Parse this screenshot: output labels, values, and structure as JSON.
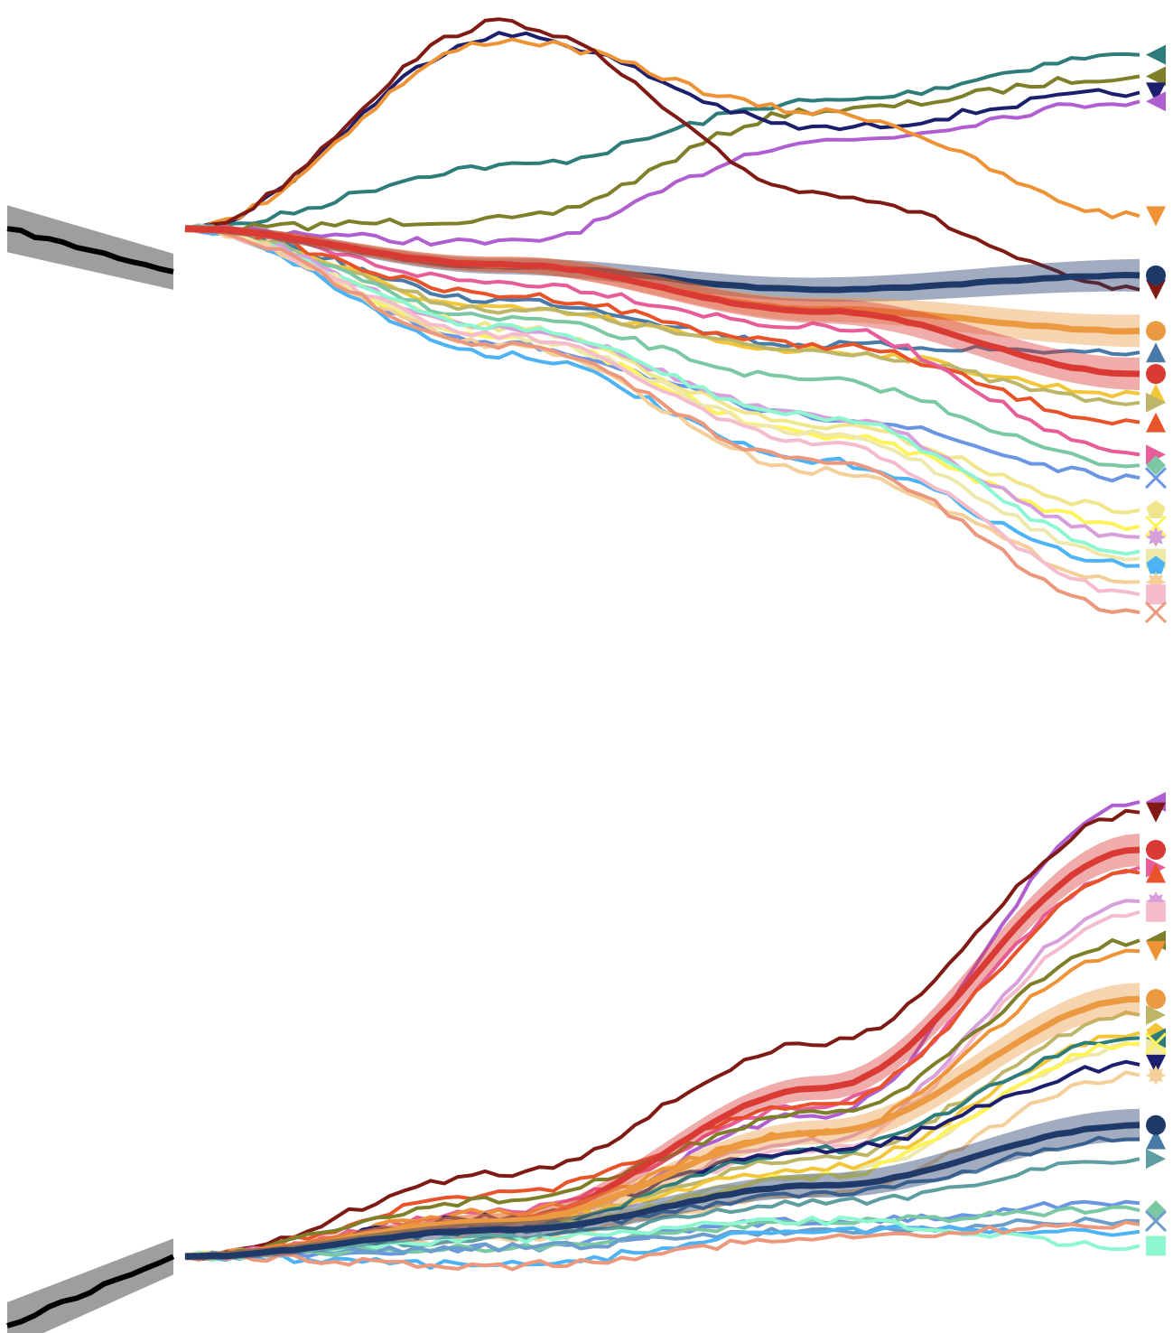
{
  "chart_data": [
    {
      "type": "line",
      "title": "",
      "xlabel": "",
      "ylabel": "",
      "grid": false,
      "legend": "none",
      "axes_visible": false,
      "history": {
        "color": "#000000",
        "band_color": "#9e9e9e",
        "values": [
          0.0,
          -2.4
        ]
      },
      "series": [
        {
          "color": "#2e7d7b",
          "marker": "triangle-left",
          "values": [
            0,
            3.5,
            7.1,
            9.7
          ]
        },
        {
          "color": "#7f7f2a",
          "marker": "triangle-left",
          "values": [
            0,
            0.5,
            6.6,
            8.5
          ]
        },
        {
          "color": "#1c1f6e",
          "marker": "triangle-down",
          "values": [
            0,
            10.8,
            5.6,
            7.6
          ]
        },
        {
          "color": "#b05fd1",
          "marker": "triangle-left",
          "values": [
            0,
            -0.8,
            4.9,
            7.1
          ]
        },
        {
          "color": "#ee9236",
          "marker": "triangle-down",
          "values": [
            0,
            10.5,
            6.5,
            0.7
          ]
        },
        {
          "color": "#1f3a68",
          "marker": "circle",
          "band": true,
          "values": [
            0,
            -2.1,
            -3.4,
            -2.6
          ]
        },
        {
          "color": "#7f1a14",
          "marker": "triangle-down",
          "values": [
            0,
            11.5,
            2.0,
            -3.4
          ]
        },
        {
          "color": "#ec9a42",
          "marker": "circle",
          "band": true,
          "values": [
            0,
            -2.0,
            -4.5,
            -5.7
          ]
        },
        {
          "color": "#4a7aa8",
          "marker": "triangle-up",
          "values": [
            0,
            -4.0,
            -6.5,
            -6.9
          ]
        },
        {
          "color": "#d93a34",
          "marker": "circle",
          "band": true,
          "values": [
            0,
            -2.0,
            -4.6,
            -8.1
          ]
        },
        {
          "color": "#f3c63a",
          "marker": "triangle-up",
          "values": [
            0,
            -4.5,
            -6.8,
            -9.2
          ]
        },
        {
          "color": "#bdb669",
          "marker": "triangle-right",
          "values": [
            0,
            -4.5,
            -6.8,
            -9.7
          ]
        },
        {
          "color": "#e9532a",
          "marker": "triangle-up",
          "values": [
            0,
            -3.7,
            -6.5,
            -10.8
          ]
        },
        {
          "color": "#e75d9a",
          "marker": "triangle-right",
          "values": [
            0,
            -3.0,
            -5.5,
            -12.6
          ]
        },
        {
          "color": "#7bc8a4",
          "marker": "diamond",
          "values": [
            0,
            -5.0,
            -8.5,
            -13.2
          ]
        },
        {
          "color": "#6b96e3",
          "marker": "x",
          "values": [
            0,
            -6.5,
            -10.5,
            -13.9
          ]
        },
        {
          "color": "#f0e68c",
          "marker": "pentagon",
          "values": [
            0,
            -5.5,
            -11.0,
            -15.7
          ]
        },
        {
          "color": "#fff35a",
          "marker": "x",
          "values": [
            0,
            -6.0,
            -11.5,
            -16.6
          ]
        },
        {
          "color": "#d7a0dd",
          "marker": "star",
          "values": [
            0,
            -5.5,
            -10.5,
            -17.2
          ]
        },
        {
          "color": "#8ff7d0",
          "marker": "none",
          "values": [
            0,
            -5.5,
            -10.5,
            -18.0
          ]
        },
        {
          "color": "#eee8aa",
          "marker": "square",
          "values": [
            0,
            -6.0,
            -11.5,
            -18.4
          ]
        },
        {
          "color": "#4db3f5",
          "marker": "pentagon",
          "values": [
            0,
            -7.0,
            -13.0,
            -18.8
          ]
        },
        {
          "color": "#f5cf99",
          "marker": "star",
          "values": [
            0,
            -6.5,
            -13.5,
            -19.7
          ]
        },
        {
          "color": "#f5bccb",
          "marker": "square",
          "values": [
            0,
            -6.0,
            -12.0,
            -20.4
          ]
        },
        {
          "color": "#ec987c",
          "marker": "x",
          "values": [
            0,
            -6.5,
            -13.0,
            -21.4
          ]
        }
      ]
    },
    {
      "type": "line",
      "title": "",
      "xlabel": "",
      "ylabel": "",
      "grid": false,
      "legend": "none",
      "axes_visible": false,
      "history": {
        "color": "#000000",
        "band_color": "#9e9e9e",
        "values": [
          -3.9,
          0.0
        ]
      },
      "series": [
        {
          "color": "#b05fd1",
          "marker": "triangle-left",
          "values": [
            0,
            1.6,
            8.0,
            25.6
          ]
        },
        {
          "color": "#7f1a14",
          "marker": "triangle-down",
          "values": [
            0,
            4.7,
            12.0,
            25.0
          ]
        },
        {
          "color": "#d93a34",
          "marker": "circle",
          "band": true,
          "values": [
            0,
            2.0,
            9.5,
            22.9
          ]
        },
        {
          "color": "#e75d9a",
          "marker": "triangle-right",
          "values": [
            0,
            2.5,
            8.5,
            21.9
          ]
        },
        {
          "color": "#e9532a",
          "marker": "triangle-up",
          "values": [
            0,
            3.5,
            8.5,
            21.6
          ]
        },
        {
          "color": "#d7a0dd",
          "marker": "star",
          "values": [
            0,
            2.0,
            6.5,
            20.0
          ]
        },
        {
          "color": "#f5bccb",
          "marker": "square",
          "values": [
            0,
            1.5,
            6.0,
            19.4
          ]
        },
        {
          "color": "#7f7f2a",
          "marker": "triangle-left",
          "values": [
            0,
            3.2,
            8.0,
            17.8
          ]
        },
        {
          "color": "#ee9236",
          "marker": "triangle-down",
          "values": [
            0,
            2.5,
            7.0,
            17.2
          ]
        },
        {
          "color": "#ec9a42",
          "marker": "circle",
          "band": true,
          "values": [
            0,
            2.0,
            7.0,
            14.5
          ]
        },
        {
          "color": "#bdb669",
          "marker": "triangle-right",
          "values": [
            0,
            2.0,
            5.5,
            13.6
          ]
        },
        {
          "color": "#f3c63a",
          "marker": "pentagon",
          "values": [
            0,
            2.0,
            5.0,
            12.6
          ]
        },
        {
          "color": "#eee8aa",
          "marker": "square",
          "values": [
            0,
            1.5,
            4.5,
            11.9
          ]
        },
        {
          "color": "#2e7d7b",
          "marker": "triangle-left",
          "values": [
            0,
            1.5,
            6.0,
            12.3
          ]
        },
        {
          "color": "#fff35a",
          "marker": "x",
          "values": [
            0,
            1.5,
            4.5,
            12.0
          ]
        },
        {
          "color": "#1c1f6e",
          "marker": "triangle-down",
          "values": [
            0,
            2.2,
            6.0,
            10.8
          ]
        },
        {
          "color": "#f5cf99",
          "marker": "star",
          "values": [
            0,
            1.0,
            3.5,
            10.2
          ]
        },
        {
          "color": "#1f3a68",
          "marker": "circle",
          "band": true,
          "values": [
            0,
            1.5,
            4.0,
            7.4
          ]
        },
        {
          "color": "#4a7aa8",
          "marker": "triangle-up",
          "values": [
            0,
            1.5,
            3.5,
            6.6
          ]
        },
        {
          "color": "#6b96e3",
          "marker": "none",
          "values": [
            0,
            0.5,
            2.0,
            3.0
          ]
        },
        {
          "color": "#5f9ea0",
          "marker": "triangle-right",
          "values": [
            0,
            1.0,
            3.0,
            5.5
          ]
        },
        {
          "color": "#7bc8a4",
          "marker": "diamond",
          "values": [
            0,
            0.5,
            2.0,
            2.6
          ]
        },
        {
          "color": "#6b9ec9",
          "marker": "x",
          "values": [
            0,
            0.5,
            1.5,
            2.0
          ]
        },
        {
          "color": "#4db3f5",
          "marker": "none",
          "values": [
            0,
            -0.5,
            1.5,
            1.4
          ]
        },
        {
          "color": "#8ff7d0",
          "marker": "square",
          "values": [
            0,
            1.0,
            2.0,
            0.6
          ]
        },
        {
          "color": "#ec987c",
          "marker": "none",
          "values": [
            0,
            -0.5,
            1.0,
            1.8
          ]
        }
      ]
    }
  ]
}
